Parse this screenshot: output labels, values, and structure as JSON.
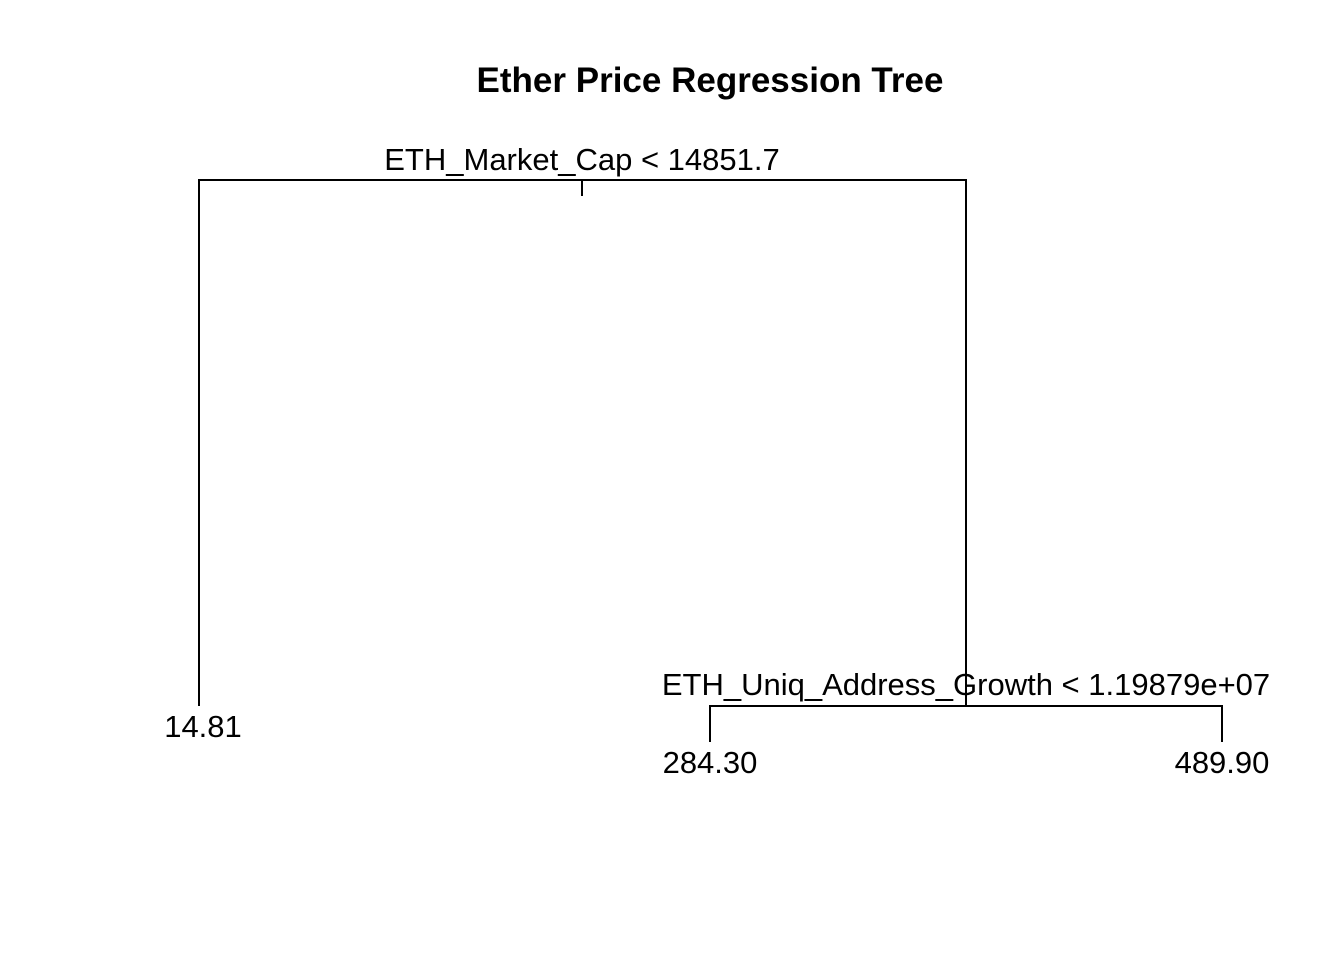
{
  "title": "Ether Price Regression Tree",
  "splits": {
    "root": "ETH_Market_Cap < 14851.7",
    "right": "ETH_Uniq_Address_Growth < 1.19879e+07"
  },
  "leaves": {
    "left": "14.81",
    "right_left": "284.30",
    "right_right": "489.90"
  },
  "colors": {
    "line": "#000000",
    "background": "#ffffff"
  }
}
